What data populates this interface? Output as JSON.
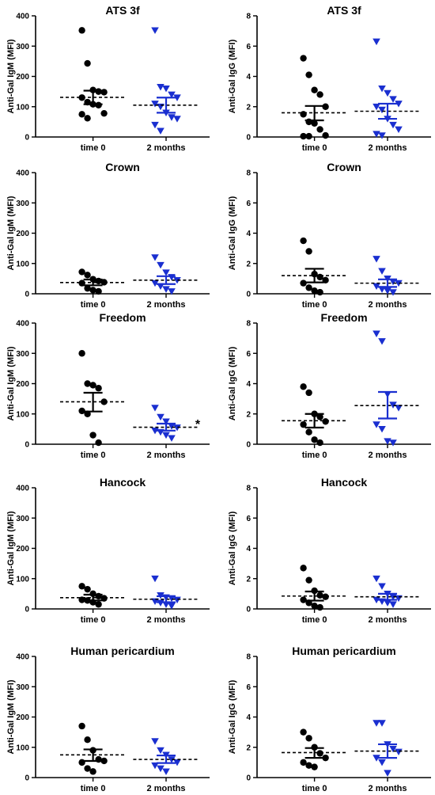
{
  "chart_data": [
    {
      "type": "scatter",
      "title": "ATS 3f",
      "ylabel": "Anti-Gal IgM (MFI)",
      "ylim": [
        0,
        400
      ],
      "yticks": [
        "0",
        "100",
        "200",
        "300",
        "400"
      ],
      "categories": [
        "time 0",
        "2 months"
      ],
      "series": [
        {
          "values": [
            352,
            243,
            155,
            150,
            148,
            130,
            115,
            108,
            105,
            78,
            75,
            62
          ],
          "mean": 131,
          "sem": [
            108,
            153
          ],
          "color": "#000000",
          "marker": "circle"
        },
        {
          "values": [
            352,
            165,
            160,
            140,
            130,
            110,
            100,
            80,
            65,
            60,
            40,
            20
          ],
          "mean": 105,
          "sem": [
            80,
            130
          ],
          "color": "#1a2fd0",
          "marker": "triangle-down"
        }
      ],
      "annotation": ""
    },
    {
      "type": "scatter",
      "title": "ATS 3f",
      "ylabel": "Anti-Gal IgG (MFI)",
      "ylim": [
        0,
        8
      ],
      "yticks": [
        "0",
        "2",
        "4",
        "6",
        "8"
      ],
      "categories": [
        "time 0",
        "2 months"
      ],
      "series": [
        {
          "values": [
            5.2,
            4.1,
            3.1,
            2.8,
            2.0,
            1.5,
            1.0,
            0.9,
            0.5,
            0.1,
            0.05,
            0.05
          ],
          "mean": 1.6,
          "sem": [
            1.1,
            2.05
          ],
          "color": "#000000",
          "marker": "circle"
        },
        {
          "values": [
            6.3,
            3.2,
            2.9,
            2.5,
            2.2,
            2.0,
            1.8,
            1.2,
            0.8,
            0.5,
            0.2,
            0.1
          ],
          "mean": 1.7,
          "sem": [
            1.2,
            2.2
          ],
          "color": "#1a2fd0",
          "marker": "triangle-down"
        }
      ],
      "annotation": ""
    },
    {
      "type": "scatter",
      "title": "Crown",
      "ylabel": "Anti-Gal IgM (MFI)",
      "ylim": [
        0,
        400
      ],
      "yticks": [
        "0",
        "100",
        "200",
        "300",
        "400"
      ],
      "categories": [
        "time 0",
        "2 months"
      ],
      "series": [
        {
          "values": [
            72,
            62,
            48,
            42,
            38,
            35,
            18,
            12,
            8
          ],
          "mean": 37,
          "sem": [
            28,
            47
          ],
          "color": "#000000",
          "marker": "circle"
        },
        {
          "values": [
            120,
            95,
            70,
            55,
            45,
            35,
            25,
            15,
            8
          ],
          "mean": 45,
          "sem": [
            32,
            58
          ],
          "color": "#1a2fd0",
          "marker": "triangle-down"
        }
      ],
      "annotation": ""
    },
    {
      "type": "scatter",
      "title": "Crown",
      "ylabel": "Anti-Gal IgG (MFI)",
      "ylim": [
        0,
        8
      ],
      "yticks": [
        "0",
        "2",
        "4",
        "6",
        "8"
      ],
      "categories": [
        "time 0",
        "2 months"
      ],
      "series": [
        {
          "values": [
            3.5,
            2.8,
            1.3,
            1.1,
            0.9,
            0.7,
            0.4,
            0.2,
            0.1
          ],
          "mean": 1.2,
          "sem": [
            0.75,
            1.65
          ],
          "color": "#000000",
          "marker": "circle"
        },
        {
          "values": [
            2.3,
            1.5,
            1.0,
            0.8,
            0.7,
            0.5,
            0.3,
            0.2,
            0.1
          ],
          "mean": 0.7,
          "sem": [
            0.45,
            0.95
          ],
          "color": "#1a2fd0",
          "marker": "triangle-down"
        }
      ],
      "annotation": ""
    },
    {
      "type": "scatter",
      "title": "Freedom",
      "ylabel": "Anti-Gal IgM (MFI)",
      "ylim": [
        0,
        400
      ],
      "yticks": [
        "0",
        "100",
        "200",
        "300",
        "400"
      ],
      "categories": [
        "time 0",
        "2 months"
      ],
      "series": [
        {
          "values": [
            300,
            200,
            195,
            185,
            140,
            110,
            100,
            30,
            5
          ],
          "mean": 140,
          "sem": [
            108,
            170
          ],
          "color": "#000000",
          "marker": "circle"
        },
        {
          "values": [
            120,
            90,
            75,
            60,
            55,
            45,
            40,
            30,
            20
          ],
          "mean": 56,
          "sem": [
            45,
            68
          ],
          "color": "#1a2fd0",
          "marker": "triangle-down"
        }
      ],
      "annotation": "*"
    },
    {
      "type": "scatter",
      "title": "Freedom",
      "ylabel": "Anti-Gal IgG (MFI)",
      "ylim": [
        0,
        8
      ],
      "yticks": [
        "0",
        "2",
        "4",
        "6",
        "8"
      ],
      "categories": [
        "time 0",
        "2 months"
      ],
      "series": [
        {
          "values": [
            3.8,
            3.4,
            2.0,
            1.8,
            1.5,
            1.3,
            0.8,
            0.3,
            0.1
          ],
          "mean": 1.55,
          "sem": [
            1.1,
            2.0
          ],
          "color": "#000000",
          "marker": "circle"
        },
        {
          "values": [
            7.3,
            6.8,
            3.3,
            2.6,
            2.4,
            1.3,
            1.0,
            0.2,
            0.1
          ],
          "mean": 2.55,
          "sem": [
            1.7,
            3.45
          ],
          "color": "#1a2fd0",
          "marker": "triangle-down"
        }
      ],
      "annotation": ""
    },
    {
      "type": "scatter",
      "title": "Hancock",
      "ylabel": "Anti-Gal IgM (MFI)",
      "ylim": [
        0,
        400
      ],
      "yticks": [
        "0",
        "100",
        "200",
        "300",
        "400"
      ],
      "categories": [
        "time 0",
        "2 months"
      ],
      "series": [
        {
          "values": [
            75,
            65,
            50,
            42,
            35,
            30,
            28,
            22,
            15
          ],
          "mean": 37,
          "sem": [
            28,
            47
          ],
          "color": "#000000",
          "marker": "circle"
        },
        {
          "values": [
            100,
            45,
            38,
            35,
            30,
            25,
            20,
            15,
            10
          ],
          "mean": 32,
          "sem": [
            22,
            42
          ],
          "color": "#1a2fd0",
          "marker": "triangle-down"
        }
      ],
      "annotation": ""
    },
    {
      "type": "scatter",
      "title": "Hancock",
      "ylabel": "Anti-Gal IgG (MFI)",
      "ylim": [
        0,
        8
      ],
      "yticks": [
        "0",
        "2",
        "4",
        "6",
        "8"
      ],
      "categories": [
        "time 0",
        "2 months"
      ],
      "series": [
        {
          "values": [
            2.7,
            1.9,
            1.2,
            0.9,
            0.8,
            0.6,
            0.4,
            0.2,
            0.1
          ],
          "mean": 0.85,
          "sem": [
            0.55,
            1.15
          ],
          "color": "#000000",
          "marker": "circle"
        },
        {
          "values": [
            2.0,
            1.5,
            1.0,
            0.8,
            0.7,
            0.6,
            0.5,
            0.4,
            0.3
          ],
          "mean": 0.8,
          "sem": [
            0.6,
            1.0
          ],
          "color": "#1a2fd0",
          "marker": "triangle-down"
        }
      ],
      "annotation": ""
    },
    {
      "type": "scatter",
      "title": "Human pericardium",
      "ylabel": "Anti-Gal IgM (MFI)",
      "ylim": [
        0,
        400
      ],
      "yticks": [
        "0",
        "100",
        "200",
        "300",
        "400"
      ],
      "categories": [
        "time 0",
        "2 months"
      ],
      "series": [
        {
          "values": [
            170,
            125,
            90,
            60,
            55,
            50,
            30,
            20
          ],
          "mean": 75,
          "sem": [
            55,
            93
          ],
          "color": "#000000",
          "marker": "circle"
        },
        {
          "values": [
            120,
            90,
            75,
            60,
            50,
            40,
            30,
            20
          ],
          "mean": 60,
          "sem": [
            48,
            73
          ],
          "color": "#1a2fd0",
          "marker": "triangle-down"
        }
      ],
      "annotation": ""
    },
    {
      "type": "scatter",
      "title": "Human pericardium",
      "ylabel": "Anti-Gal IgG (MFI)",
      "ylim": [
        0,
        8
      ],
      "yticks": [
        "0",
        "2",
        "4",
        "6",
        "8"
      ],
      "categories": [
        "time 0",
        "2 months"
      ],
      "series": [
        {
          "values": [
            3.0,
            2.6,
            2.0,
            1.6,
            1.3,
            1.0,
            0.8,
            0.7
          ],
          "mean": 1.65,
          "sem": [
            1.3,
            1.95
          ],
          "color": "#000000",
          "marker": "circle"
        },
        {
          "values": [
            3.6,
            3.6,
            2.2,
            1.9,
            1.7,
            1.3,
            1.0,
            0.3
          ],
          "mean": 1.75,
          "sem": [
            1.3,
            2.2
          ],
          "color": "#1a2fd0",
          "marker": "triangle-down"
        }
      ],
      "annotation": ""
    }
  ]
}
